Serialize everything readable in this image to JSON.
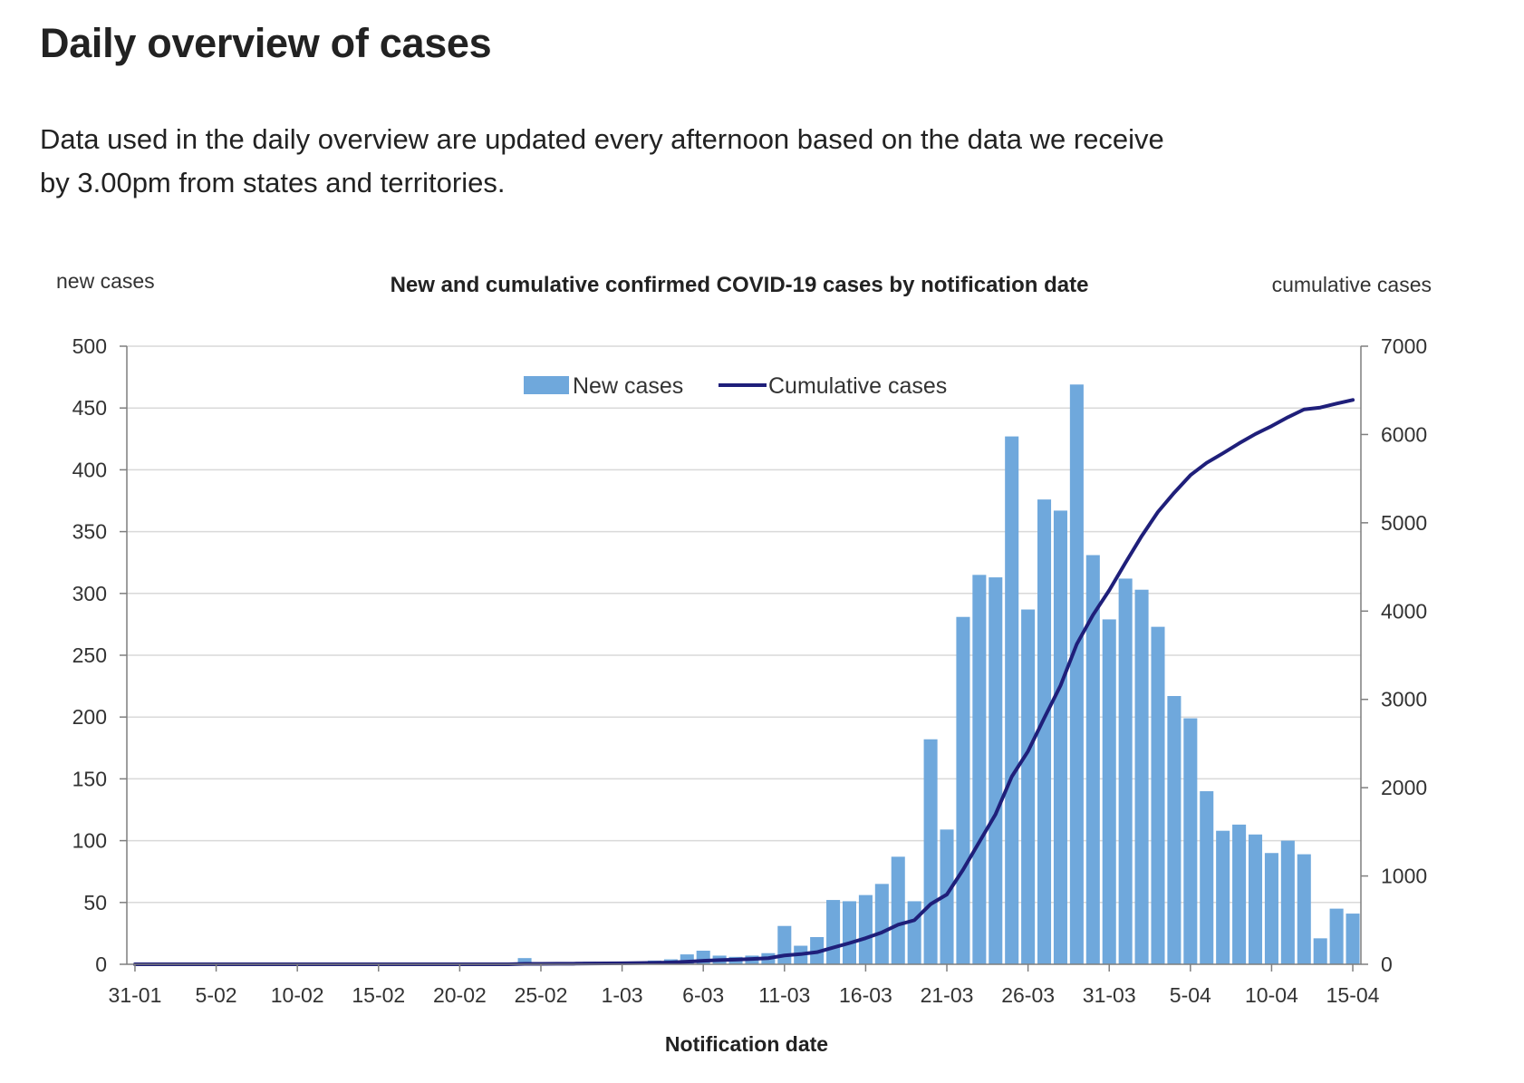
{
  "page": {
    "heading": "Daily overview of cases",
    "intro_line1": "Data used in the daily overview are updated every afternoon based on the data we receive",
    "intro_line2": "by 3.00pm from states and territories."
  },
  "chart_data": {
    "type": "bar",
    "title": "New and cumulative confirmed COVID-19 cases by notification date",
    "xlabel": "Notification date",
    "ylabel_left": "new cases",
    "ylabel_right": "cumulative cases",
    "ylim_left": [
      0,
      500
    ],
    "ylim_right": [
      0,
      7000
    ],
    "yticks_left": [
      0,
      50,
      100,
      150,
      200,
      250,
      300,
      350,
      400,
      450,
      500
    ],
    "yticks_right": [
      0,
      1000,
      2000,
      3000,
      4000,
      5000,
      6000,
      7000
    ],
    "grid": true,
    "legend_position": "top-center",
    "x_tick_labels": [
      "31-01",
      "5-02",
      "10-02",
      "15-02",
      "20-02",
      "25-02",
      "1-03",
      "6-03",
      "11-03",
      "16-03",
      "21-03",
      "26-03",
      "31-03",
      "5-04",
      "10-04",
      "15-04"
    ],
    "colors": {
      "new_cases": "#6fa8dc",
      "cumulative_cases": "#1f1f7a",
      "grid": "#d9d9d9",
      "axis": "#7f7f7f"
    },
    "categories": [
      "31-01",
      "1-02",
      "2-02",
      "3-02",
      "4-02",
      "5-02",
      "6-02",
      "7-02",
      "8-02",
      "9-02",
      "10-02",
      "11-02",
      "12-02",
      "13-02",
      "14-02",
      "15-02",
      "16-02",
      "17-02",
      "18-02",
      "19-02",
      "20-02",
      "21-02",
      "22-02",
      "23-02",
      "24-02",
      "25-02",
      "26-02",
      "27-02",
      "28-02",
      "29-02",
      "1-03",
      "2-03",
      "3-03",
      "4-03",
      "5-03",
      "6-03",
      "7-03",
      "8-03",
      "9-03",
      "10-03",
      "11-03",
      "12-03",
      "13-03",
      "14-03",
      "15-03",
      "16-03",
      "17-03",
      "18-03",
      "19-03",
      "20-03",
      "21-03",
      "22-03",
      "23-03",
      "24-03",
      "25-03",
      "26-03",
      "27-03",
      "28-03",
      "29-03",
      "30-03",
      "31-03",
      "1-04",
      "2-04",
      "3-04",
      "4-04",
      "5-04",
      "6-04",
      "7-04",
      "8-04",
      "9-04",
      "10-04",
      "11-04",
      "12-04",
      "13-04",
      "14-04",
      "15-04"
    ],
    "series": [
      {
        "name": "New cases",
        "type": "bar",
        "axis": "left",
        "values": [
          0,
          0,
          0,
          0,
          0,
          0,
          0,
          0,
          0,
          0,
          0,
          0,
          0,
          0,
          0,
          0,
          0,
          0,
          0,
          0,
          0,
          0,
          0,
          0,
          5,
          0,
          1,
          1,
          2,
          1,
          2,
          2,
          3,
          4,
          8,
          11,
          7,
          6,
          7,
          9,
          31,
          15,
          22,
          52,
          51,
          56,
          65,
          87,
          51,
          182,
          109,
          281,
          315,
          313,
          427,
          287,
          376,
          367,
          469,
          331,
          279,
          312,
          303,
          273,
          217,
          199,
          140,
          108,
          113,
          105,
          90,
          100,
          89,
          21,
          45,
          41
        ]
      },
      {
        "name": "Cumulative cases",
        "type": "line",
        "axis": "right",
        "values": [
          0,
          0,
          0,
          0,
          0,
          0,
          0,
          0,
          0,
          0,
          0,
          0,
          0,
          0,
          0,
          0,
          0,
          0,
          0,
          0,
          0,
          0,
          0,
          0,
          5,
          5,
          6,
          7,
          9,
          10,
          12,
          14,
          17,
          21,
          29,
          40,
          47,
          53,
          60,
          69,
          100,
          115,
          137,
          189,
          240,
          296,
          361,
          448,
          499,
          681,
          790,
          1071,
          1386,
          1699,
          2126,
          2413,
          2789,
          3156,
          3625,
          3956,
          4235,
          4547,
          4850,
          5123,
          5340,
          5539,
          5679,
          5787,
          5900,
          6005,
          6095,
          6195,
          6284,
          6305,
          6350,
          6391
        ]
      }
    ]
  }
}
